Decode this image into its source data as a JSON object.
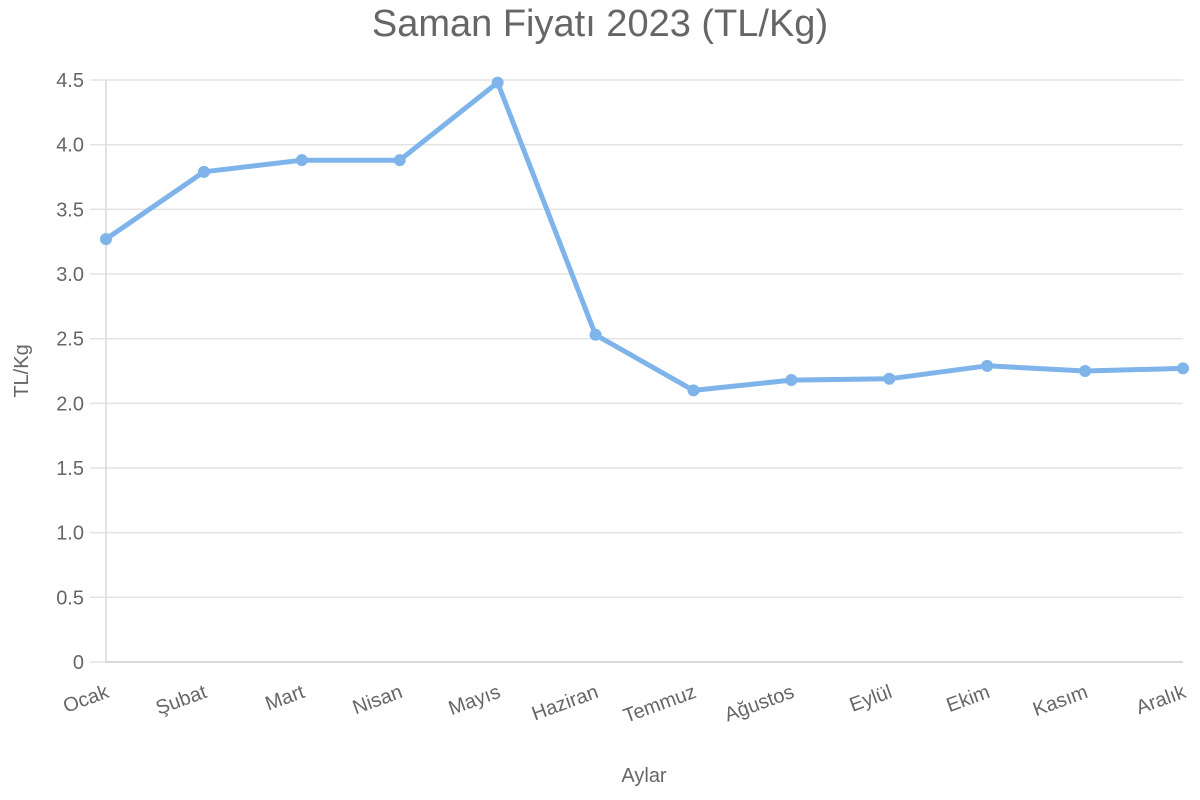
{
  "chart_data": {
    "type": "line",
    "title": "Saman Fiyatı 2023 (TL/Kg)",
    "xlabel": "Aylar",
    "ylabel": "TL/Kg",
    "categories": [
      "Ocak",
      "Şubat",
      "Mart",
      "Nisan",
      "Mayıs",
      "Haziran",
      "Temmuz",
      "Ağustos",
      "Eylül",
      "Ekim",
      "Kasım",
      "Aralık"
    ],
    "series": [
      {
        "name": "Saman Fiyatı",
        "color": "#7eb4ea",
        "values": [
          3.27,
          3.79,
          3.88,
          3.88,
          4.48,
          2.53,
          2.1,
          2.18,
          2.19,
          2.29,
          2.25,
          2.27
        ]
      }
    ],
    "ylim": [
      0,
      4.5
    ],
    "yticks": [
      "0",
      "0.5",
      "1.0",
      "1.5",
      "2.0",
      "2.5",
      "3.0",
      "3.5",
      "4.0",
      "4.5"
    ],
    "grid": true,
    "legend": "none"
  }
}
